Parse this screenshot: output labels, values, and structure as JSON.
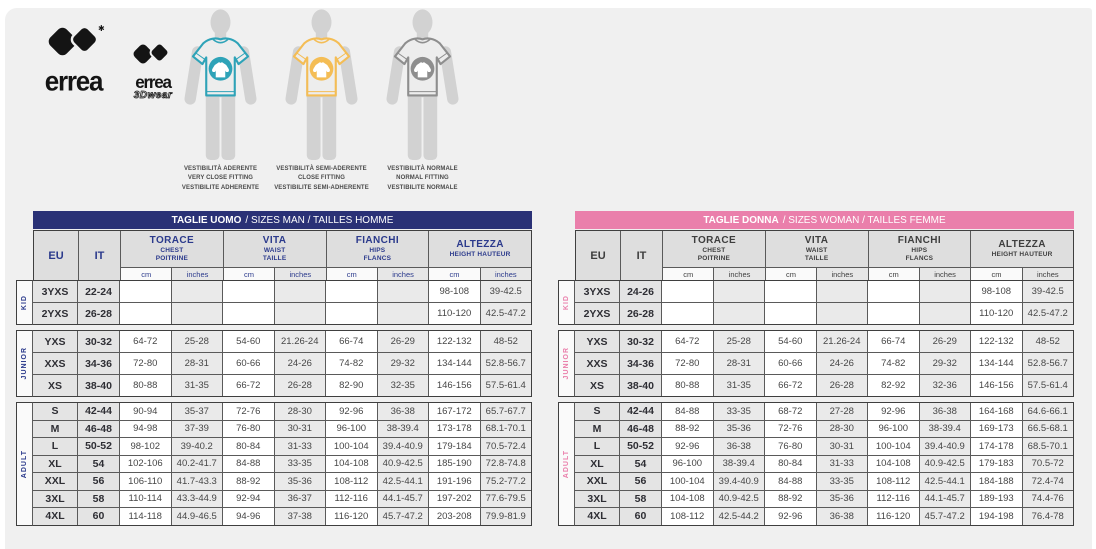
{
  "page": {
    "background": "#f0f0f0"
  },
  "brand": {
    "wordmark": "errea",
    "star": "✱",
    "sub_wordmark": "errea",
    "sub_line": "3Dwear"
  },
  "fits": [
    {
      "name": "very-close-fitting",
      "color": "#2EA3B8",
      "lines": [
        "VESTIBILITÀ ADERENTE",
        "VERY CLOSE FITTING",
        "VESTIBILITE ADHERENTE"
      ]
    },
    {
      "name": "close-fitting",
      "color": "#F4BD55",
      "lines": [
        "VESTIBILITÀ SEMI-ADERENTE",
        "CLOSE FITTING",
        "VESTIBILITE SEMI-ADHERENTE"
      ]
    },
    {
      "name": "normal-fitting",
      "color": "#8E8E8E",
      "lines": [
        "VESTIBILITÀ NORMALE",
        "NORMAL FITTING",
        "VESTIBILITE NORMALE"
      ]
    }
  ],
  "tables": [
    {
      "id": "men",
      "accent": "#2A3176",
      "header_text": "#2B3A8C",
      "strip_text": "#2B3A8C",
      "title_bold": "TAGLIE UOMO",
      "title_rest": "/ SIZES MAN / TAILLES HOMME",
      "head": {
        "eu": "EU",
        "it": "IT",
        "groups": [
          [
            "TORACE",
            "CHEST",
            "POITRINE"
          ],
          [
            "VITA",
            "WAIST",
            "TAILLE"
          ],
          [
            "FIANCHI",
            "HIPS",
            "FLANCS"
          ],
          [
            "ALTEZZA",
            "HEIGHT HAUTEUR"
          ]
        ],
        "units": [
          "cm",
          "inches",
          "cm",
          "inches",
          "cm",
          "inches",
          "cm",
          "inches"
        ]
      },
      "blocks": [
        {
          "label": "KID",
          "rows": [
            [
              "3YXS",
              "22-24",
              "",
              "",
              "",
              "",
              "",
              "",
              "98-108",
              "39-42.5"
            ],
            [
              "2YXS",
              "26-28",
              "",
              "",
              "",
              "",
              "",
              "",
              "110-120",
              "42.5-47.2"
            ]
          ]
        },
        {
          "label": "JUNIOR",
          "rows": [
            [
              "YXS",
              "30-32",
              "64-72",
              "25-28",
              "54-60",
              "21.26-24",
              "66-74",
              "26-29",
              "122-132",
              "48-52"
            ],
            [
              "XXS",
              "34-36",
              "72-80",
              "28-31",
              "60-66",
              "24-26",
              "74-82",
              "29-32",
              "134-144",
              "52.8-56.7"
            ],
            [
              "XS",
              "38-40",
              "80-88",
              "31-35",
              "66-72",
              "26-28",
              "82-90",
              "32-35",
              "146-156",
              "57.5-61.4"
            ]
          ]
        },
        {
          "label": "ADULT",
          "rows": [
            [
              "S",
              "42-44",
              "90-94",
              "35-37",
              "72-76",
              "28-30",
              "92-96",
              "36-38",
              "167-172",
              "65.7-67.7"
            ],
            [
              "M",
              "46-48",
              "94-98",
              "37-39",
              "76-80",
              "30-31",
              "96-100",
              "38-39.4",
              "173-178",
              "68.1-70.1"
            ],
            [
              "L",
              "50-52",
              "98-102",
              "39-40.2",
              "80-84",
              "31-33",
              "100-104",
              "39.4-40.9",
              "179-184",
              "70.5-72.4"
            ],
            [
              "XL",
              "54",
              "102-106",
              "40.2-41.7",
              "84-88",
              "33-35",
              "104-108",
              "40.9-42.5",
              "185-190",
              "72.8-74.8"
            ],
            [
              "XXL",
              "56",
              "106-110",
              "41.7-43.3",
              "88-92",
              "35-36",
              "108-112",
              "42.5-44.1",
              "191-196",
              "75.2-77.2"
            ],
            [
              "3XL",
              "58",
              "110-114",
              "43.3-44.9",
              "92-94",
              "36-37",
              "112-116",
              "44.1-45.7",
              "197-202",
              "77.6-79.5"
            ],
            [
              "4XL",
              "60",
              "114-118",
              "44.9-46.5",
              "94-96",
              "37-38",
              "116-120",
              "45.7-47.2",
              "203-208",
              "79.9-81.9"
            ]
          ]
        }
      ]
    },
    {
      "id": "women",
      "accent": "#EA7FAB",
      "header_text": "#3E3E3E",
      "strip_text": "#EA7FAB",
      "title_bold": "TAGLIE DONNA",
      "title_rest": "/ SIZES WOMAN / TAILLES FEMME",
      "head": {
        "eu": "EU",
        "it": "IT",
        "groups": [
          [
            "TORACE",
            "CHEST",
            "POITRINE"
          ],
          [
            "VITA",
            "WAIST",
            "TAILLE"
          ],
          [
            "FIANCHI",
            "HIPS",
            "FLANCS"
          ],
          [
            "ALTEZZA",
            "HEIGHT HAUTEUR"
          ]
        ],
        "units": [
          "cm",
          "inches",
          "cm",
          "inches",
          "cm",
          "inches",
          "cm",
          "inches"
        ]
      },
      "blocks": [
        {
          "label": "KID",
          "rows": [
            [
              "3YXS",
              "24-26",
              "",
              "",
              "",
              "",
              "",
              "",
              "98-108",
              "39-42.5"
            ],
            [
              "2YXS",
              "26-28",
              "",
              "",
              "",
              "",
              "",
              "",
              "110-120",
              "42.5-47.2"
            ]
          ]
        },
        {
          "label": "JUNIOR",
          "rows": [
            [
              "YXS",
              "30-32",
              "64-72",
              "25-28",
              "54-60",
              "21.26-24",
              "66-74",
              "26-29",
              "122-132",
              "48-52"
            ],
            [
              "XXS",
              "34-36",
              "72-80",
              "28-31",
              "60-66",
              "24-26",
              "74-82",
              "29-32",
              "134-144",
              "52.8-56.7"
            ],
            [
              "XS",
              "38-40",
              "80-88",
              "31-35",
              "66-72",
              "26-28",
              "82-92",
              "32-36",
              "146-156",
              "57.5-61.4"
            ]
          ]
        },
        {
          "label": "ADULT",
          "rows": [
            [
              "S",
              "42-44",
              "84-88",
              "33-35",
              "68-72",
              "27-28",
              "92-96",
              "36-38",
              "164-168",
              "64.6-66.1"
            ],
            [
              "M",
              "46-48",
              "88-92",
              "35-36",
              "72-76",
              "28-30",
              "96-100",
              "38-39.4",
              "169-173",
              "66.5-68.1"
            ],
            [
              "L",
              "50-52",
              "92-96",
              "36-38",
              "76-80",
              "30-31",
              "100-104",
              "39.4-40.9",
              "174-178",
              "68.5-70.1"
            ],
            [
              "XL",
              "54",
              "96-100",
              "38-39.4",
              "80-84",
              "31-33",
              "104-108",
              "40.9-42.5",
              "179-183",
              "70.5-72"
            ],
            [
              "XXL",
              "56",
              "100-104",
              "39.4-40.9",
              "84-88",
              "33-35",
              "108-112",
              "42.5-44.1",
              "184-188",
              "72.4-74"
            ],
            [
              "3XL",
              "58",
              "104-108",
              "40.9-42.5",
              "88-92",
              "35-36",
              "112-116",
              "44.1-45.7",
              "189-193",
              "74.4-76"
            ],
            [
              "4XL",
              "60",
              "108-112",
              "42.5-44.2",
              "92-96",
              "36-38",
              "116-120",
              "45.7-47.2",
              "194-198",
              "76.4-78"
            ]
          ]
        }
      ]
    }
  ]
}
